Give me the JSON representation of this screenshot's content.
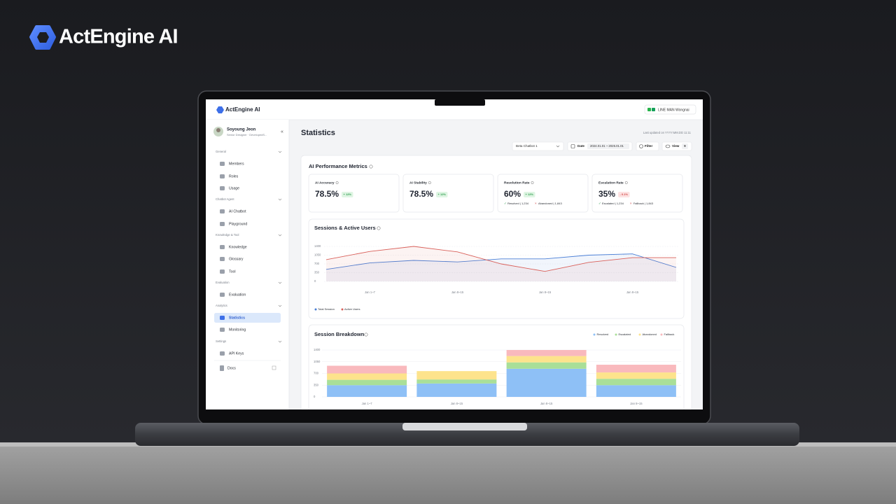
{
  "brand": "ActEngine AI",
  "app": {
    "logo": "ActEngine AI",
    "workspace": "LINE MAN Wongnai",
    "user": {
      "name": "Soyoung Jeon",
      "role": "Senior Designer · DevelopedS..."
    },
    "sidebar": {
      "sections": [
        {
          "title": "General",
          "items": [
            "Members",
            "Roles",
            "Usage"
          ]
        },
        {
          "title": "Chatbot Agent",
          "items": [
            "AI Chatbot",
            "Playground"
          ]
        },
        {
          "title": "Knowledge & Tool",
          "items": [
            "Knowledge",
            "Glossary",
            "Tool"
          ]
        },
        {
          "title": "Evaluation",
          "items": [
            "Evaluation"
          ]
        },
        {
          "title": "Analytics",
          "items": [
            "Statistics",
            "Monitoring"
          ]
        },
        {
          "title": "Settings",
          "items": [
            "API Keys"
          ]
        }
      ],
      "docs": "Docs"
    },
    "page": {
      "title": "Statistics",
      "last_updated": "Last updated on YYYY.MM.DD 11:11",
      "chatbot": "Beta Chatbot 1",
      "date_label": "Date",
      "date_range": "2024.01.01 ~ 2025.01.01",
      "filter": "Filter",
      "view": "View",
      "view_count": "9"
    },
    "metrics": {
      "title": "AI Performance Metrics",
      "cards": [
        {
          "label": "AI Accuracy",
          "value": "78.5%",
          "change": "+ 12%",
          "trend": "up",
          "details": []
        },
        {
          "label": "AI Stability",
          "value": "78.5%",
          "change": "+ 12%",
          "trend": "up",
          "details": []
        },
        {
          "label": "Resolution Rate",
          "value": "60%",
          "change": "+ 12%",
          "trend": "up",
          "details": [
            "Resolved | 1,234",
            "Abandoned | 1,843"
          ]
        },
        {
          "label": "Escalation Rate",
          "value": "35%",
          "change": "- 0.1%",
          "trend": "down",
          "details": [
            "Escalated | 1,234",
            "Fallback | 1,843"
          ]
        }
      ]
    },
    "sessions_chart": {
      "type": "line",
      "title": "Sessions & Active Users",
      "categories": [
        null,
        "Jan 1~7",
        null,
        "Jan 8~15",
        null,
        "Jan 8~15",
        null,
        "Jan 8~15",
        null
      ],
      "series": [
        {
          "name": "Total Session",
          "color": "#4a7fd6",
          "values": [
            480,
            740,
            840,
            780,
            900,
            900,
            1050,
            1100,
            560
          ]
        },
        {
          "name": "Active Users",
          "color": "#d9605a",
          "values": [
            870,
            1200,
            1400,
            1180,
            700,
            400,
            760,
            950,
            950
          ]
        }
      ],
      "ylim": [
        0,
        1400
      ],
      "yticks": [
        0,
        350,
        700,
        1050,
        1400
      ],
      "grid": true
    },
    "breakdown_chart": {
      "type": "bar",
      "stacked": true,
      "title": "Session Breakdown",
      "categories": [
        "Jan 1~7",
        "Jan 8~15",
        "Jan 8~15",
        "Jan 8~15"
      ],
      "series": [
        {
          "name": "Resolved",
          "color": "#8ec0f6",
          "values": [
            350,
            400,
            840,
            350
          ]
        },
        {
          "name": "Escalated",
          "color": "#a9df98",
          "values": [
            160,
            120,
            190,
            190
          ]
        },
        {
          "name": "Abandoned",
          "color": "#fde38c",
          "values": [
            190,
            250,
            190,
            190
          ]
        },
        {
          "name": "Fallback",
          "color": "#f9b9bd",
          "values": [
            230,
            0,
            180,
            230
          ]
        }
      ],
      "ylim": [
        0,
        1400
      ],
      "yticks": [
        0,
        350,
        700,
        1050,
        1400
      ],
      "grid": true
    }
  }
}
